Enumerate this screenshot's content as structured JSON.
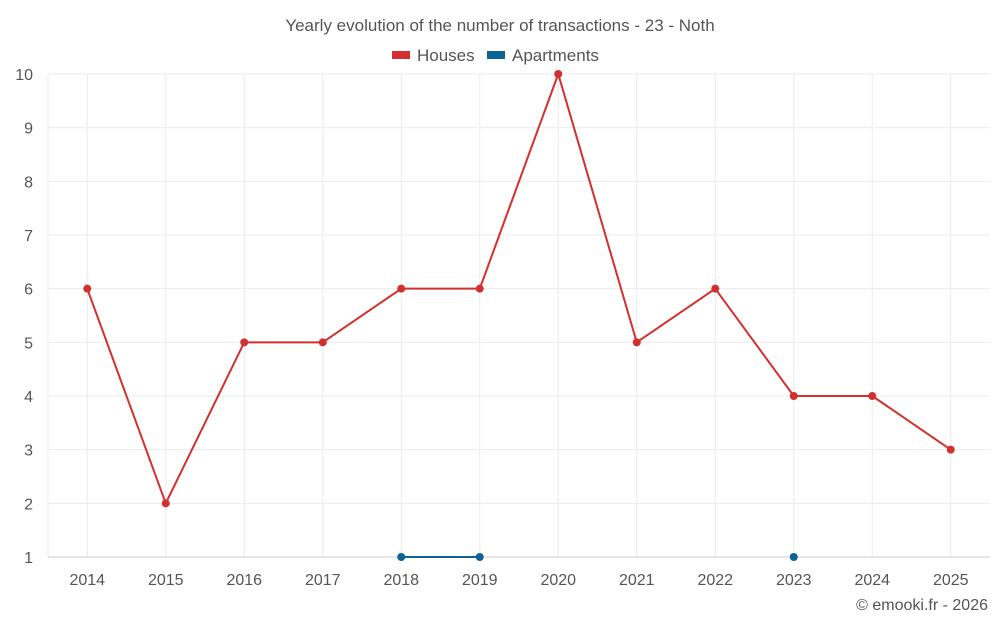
{
  "chart_data": {
    "type": "line",
    "title": "Yearly evolution of the number of transactions - 23 - Noth",
    "categories": [
      "2014",
      "2015",
      "2016",
      "2017",
      "2018",
      "2019",
      "2020",
      "2021",
      "2022",
      "2023",
      "2024",
      "2025"
    ],
    "ylim": [
      1,
      10
    ],
    "yticks": [
      1,
      2,
      3,
      4,
      5,
      6,
      7,
      8,
      9,
      10
    ],
    "grid": true,
    "legend_position": "top-center",
    "series": [
      {
        "name": "Houses",
        "color": "#d32f2f",
        "values": [
          6,
          2,
          5,
          5,
          6,
          6,
          10,
          5,
          6,
          4,
          4,
          3
        ]
      },
      {
        "name": "Apartments",
        "color": "#0b6396",
        "values": [
          null,
          null,
          null,
          null,
          1,
          1,
          null,
          null,
          null,
          1,
          null,
          null
        ]
      }
    ]
  },
  "credit": "© emooki.fr - 2026"
}
